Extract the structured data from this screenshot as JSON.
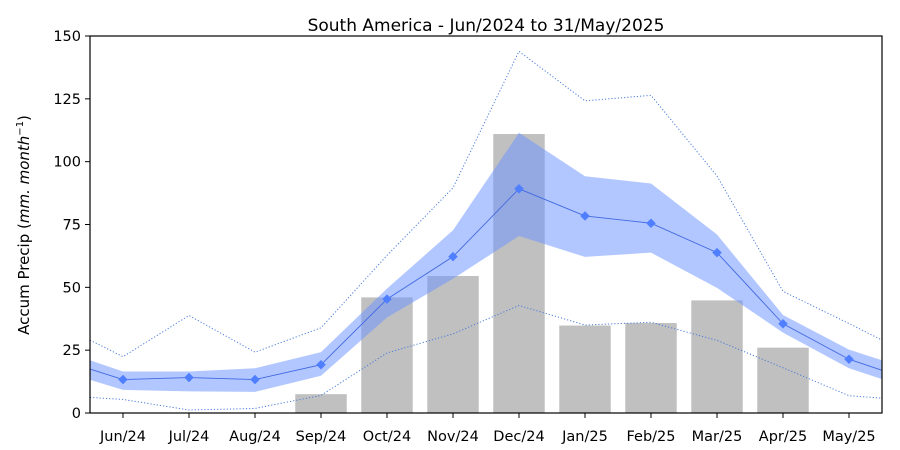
{
  "chart_data": {
    "type": "bar",
    "title": "South America - Jun/2024 to 31/May/2025",
    "ylabel_prefix": "Accum Precip (",
    "ylabel_units": "mm. month",
    "ylabel_exponent": "−1",
    "ylabel_suffix": ")",
    "xlabel": "",
    "ylim": [
      0,
      150
    ],
    "yticks": [
      0,
      25,
      50,
      75,
      100,
      125,
      150
    ],
    "grid": false,
    "categories": [
      "Jun/24",
      "Jul/24",
      "Aug/24",
      "Sep/24",
      "Oct/24",
      "Nov/24",
      "Dec/24",
      "Jan/25",
      "Feb/25",
      "Mar/25",
      "Apr/25",
      "May/25"
    ],
    "bars": [
      0,
      0,
      0,
      7.5,
      46,
      54.5,
      111,
      34.8,
      35.8,
      44.8,
      26,
      0
    ],
    "climatology_mean": [
      13.3,
      14.1,
      13.3,
      19.2,
      45.3,
      62.2,
      89.2,
      78.4,
      75.5,
      63.8,
      35.5,
      21.4
    ],
    "band_upper": [
      16.5,
      16.5,
      17.8,
      24.2,
      49.5,
      72.7,
      111.5,
      94.2,
      91.3,
      71.0,
      39.0,
      25.2
    ],
    "band_lower": [
      9.2,
      8.6,
      8.4,
      14.8,
      38.0,
      53.4,
      70.4,
      62.1,
      63.8,
      49.8,
      32.0,
      17.8
    ],
    "max_line": [
      22.4,
      38.8,
      24.2,
      33.9,
      62.7,
      89.6,
      143.9,
      124.2,
      126.4,
      94.3,
      48.4,
      35.6
    ],
    "min_line": [
      5.4,
      1.2,
      1.8,
      7.0,
      23.9,
      31.5,
      42.8,
      35.0,
      36.1,
      28.9,
      18.0,
      6.9
    ],
    "edge_left": {
      "max": 29.0,
      "upper": 21.0,
      "mean": 17.5,
      "lower": 13.2,
      "min": 6.2
    },
    "edge_right": {
      "max": 29.0,
      "upper": 21.0,
      "mean": 17.0,
      "lower": 13.5,
      "min": 5.9
    },
    "colors": {
      "bar": "#c0c0c0",
      "band": "#6e96ff",
      "line": "#4169e1",
      "marker": "#4f7fff",
      "dotted": "#4a7bdc"
    }
  }
}
